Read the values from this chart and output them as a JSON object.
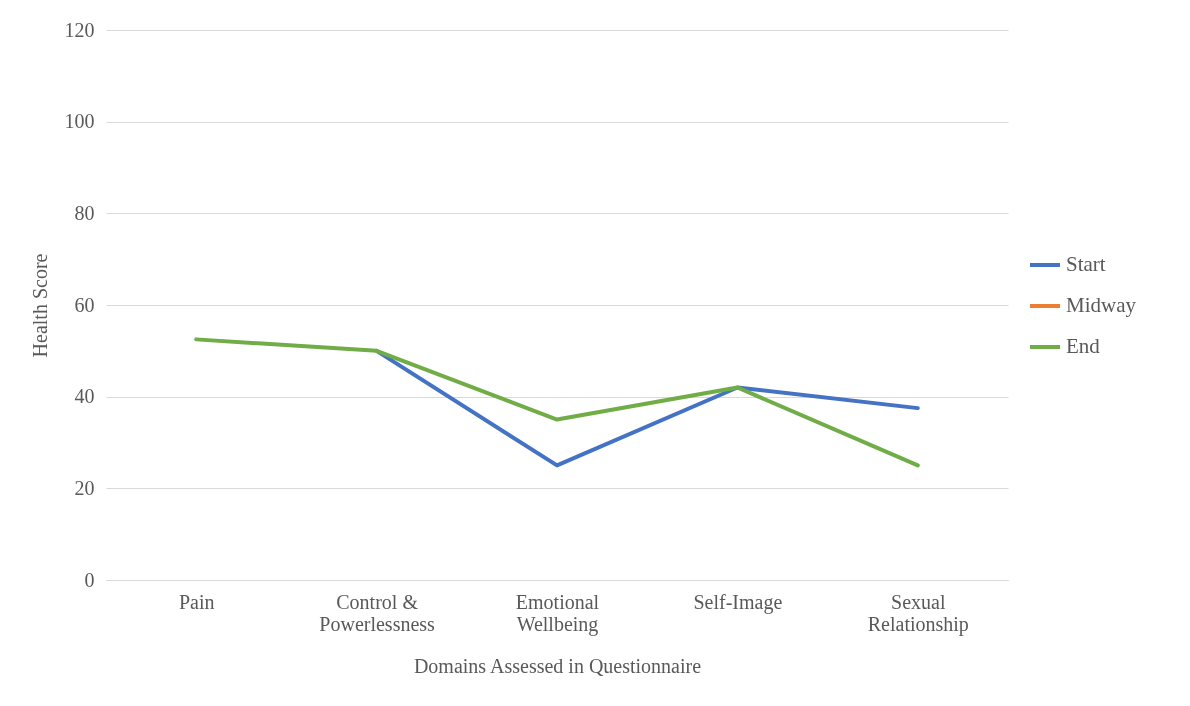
{
  "chart_data": {
    "type": "line",
    "xlabel": "Domains Assessed in Questionnaire",
    "ylabel": "Health Score",
    "categories": [
      "Pain",
      "Control & Powerlessness",
      "Emotional Wellbeing",
      "Self-Image",
      "Sexual Relationship"
    ],
    "series": [
      {
        "name": "Start",
        "color": "#4472c4",
        "values": [
          null,
          50,
          25,
          42,
          37.5
        ]
      },
      {
        "name": "Midway",
        "color": "#ed7d31",
        "values": [
          null,
          null,
          null,
          null,
          null
        ]
      },
      {
        "name": "End",
        "color": "#70ad47",
        "values": [
          52.5,
          50,
          35,
          42,
          25
        ]
      }
    ],
    "ylim": [
      0,
      120
    ],
    "yticks": [
      0,
      20,
      40,
      60,
      80,
      100,
      120
    ],
    "grid": "y",
    "legend": "right",
    "marker": "none",
    "line_style": "solid"
  }
}
